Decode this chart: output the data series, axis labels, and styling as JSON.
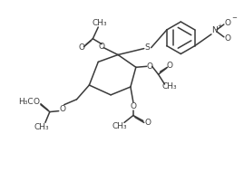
{
  "bg": "#ffffff",
  "lc": "#3a3a3a",
  "lw": 1.1,
  "fs": 6.5,
  "fs2": 5.0,
  "xlim": [
    0,
    269
  ],
  "ylim": [
    0,
    190
  ]
}
